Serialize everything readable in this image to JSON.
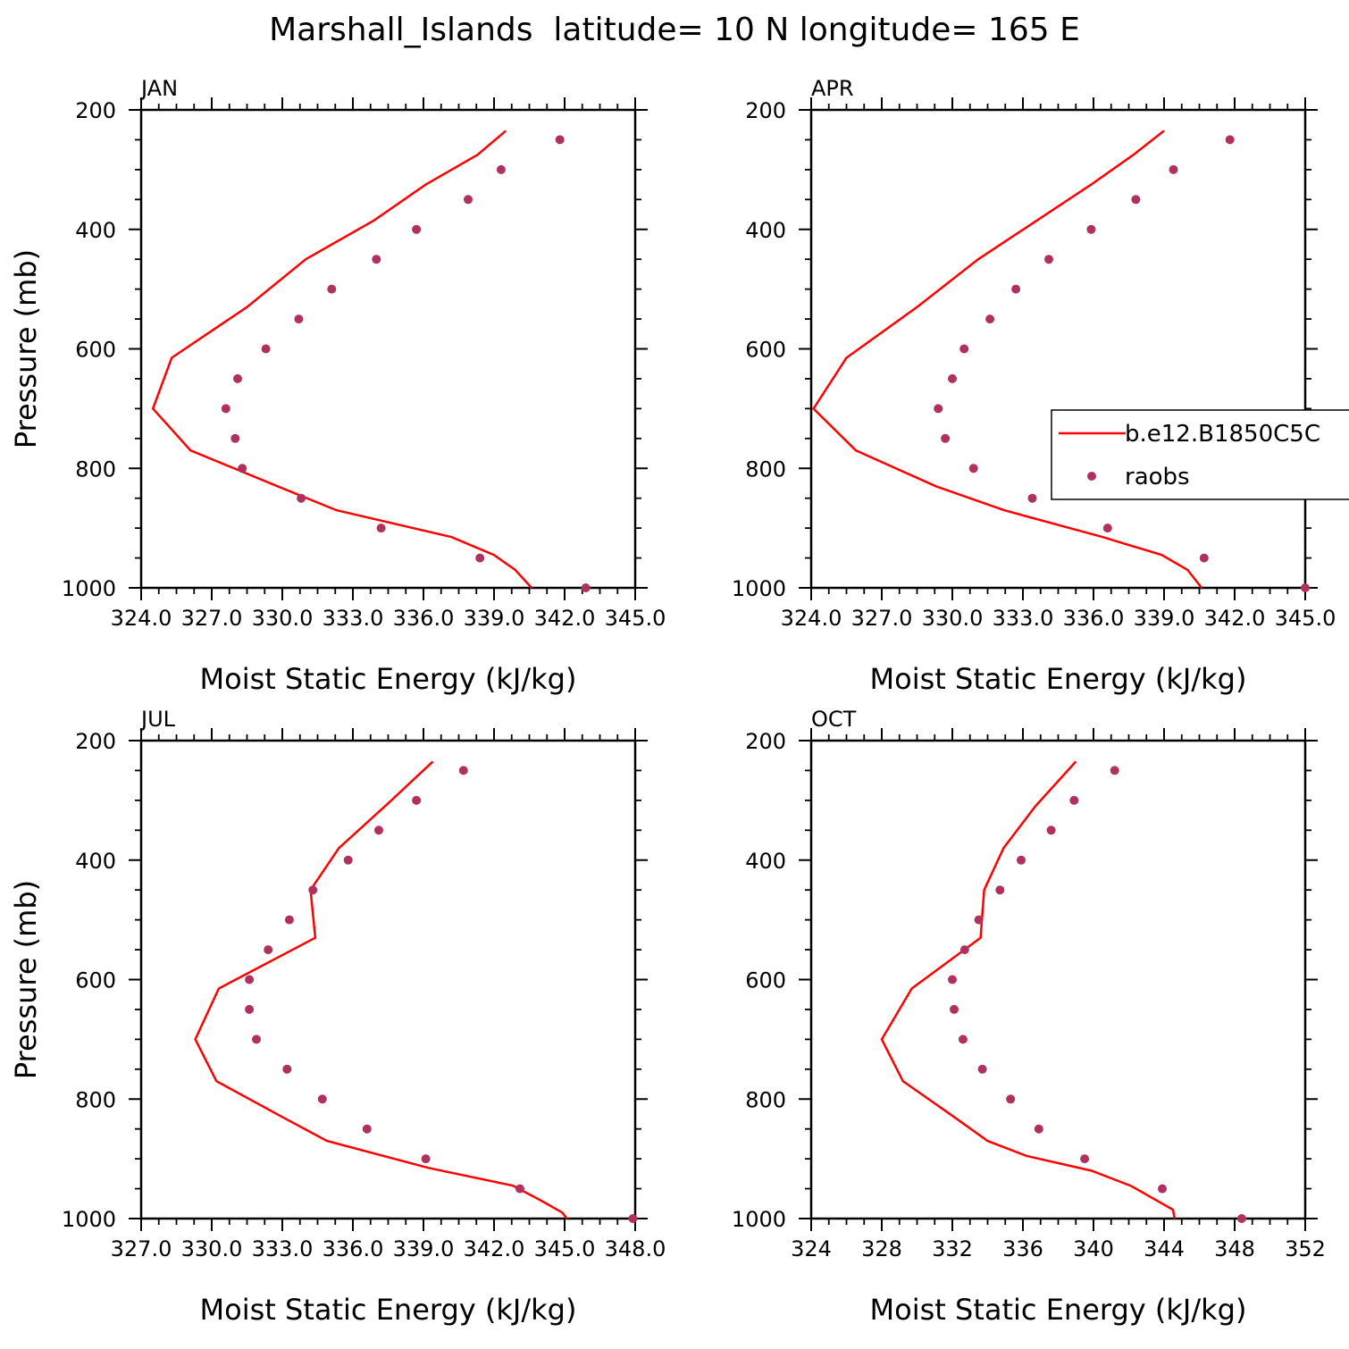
{
  "title": "Marshall_Islands  latitude= 10 N longitude= 165 E",
  "legend": {
    "model_label": "b.e12.B1850C5C",
    "obs_label": "raobs"
  },
  "colors": {
    "model": "#ff0000",
    "obs": "#b03060"
  },
  "chart_data": [
    {
      "type": "line",
      "panel": "JAN",
      "xlabel": "Moist Static Energy (kJ/kg)",
      "ylabel": "Pressure (mb)",
      "xlim": [
        324,
        345
      ],
      "ylim": [
        1000,
        200
      ],
      "grid": false,
      "x_tick_labels": [
        "324.0",
        "327.0",
        "330.0",
        "333.0",
        "336.0",
        "339.0",
        "342.0",
        "345.0"
      ],
      "y_tick_labels": [
        "200",
        "400",
        "600",
        "800",
        "1000"
      ],
      "series": [
        {
          "name": "b.e12.B1850C5C",
          "kind": "line",
          "p": [
            235,
            275,
            325,
            385,
            450,
            530,
            615,
            700,
            770,
            830,
            870,
            915,
            945,
            970,
            1000
          ],
          "x": [
            339.5,
            338.3,
            336.1,
            333.9,
            331.0,
            328.5,
            325.3,
            324.5,
            326.1,
            329.8,
            332.3,
            337.2,
            339.0,
            339.9,
            340.6
          ]
        },
        {
          "name": "raobs",
          "kind": "scatter",
          "p": [
            250,
            300,
            350,
            400,
            450,
            500,
            550,
            600,
            650,
            700,
            750,
            800,
            850,
            900,
            950,
            1000
          ],
          "x": [
            341.8,
            339.3,
            337.9,
            335.7,
            334.0,
            332.1,
            330.7,
            329.3,
            328.1,
            327.6,
            328.0,
            328.3,
            330.8,
            334.2,
            338.4,
            342.9
          ]
        }
      ]
    },
    {
      "type": "line",
      "panel": "APR",
      "xlabel": "Moist Static Energy (kJ/kg)",
      "ylabel": "",
      "xlim": [
        324,
        345
      ],
      "ylim": [
        1000,
        200
      ],
      "grid": false,
      "x_tick_labels": [
        "324.0",
        "327.0",
        "330.0",
        "333.0",
        "336.0",
        "339.0",
        "342.0",
        "345.0"
      ],
      "y_tick_labels": [
        "200",
        "400",
        "600",
        "800",
        "1000"
      ],
      "legend_position": "right",
      "series": [
        {
          "name": "b.e12.B1850C5C",
          "kind": "line",
          "p": [
            235,
            275,
            325,
            385,
            450,
            530,
            615,
            700,
            770,
            830,
            870,
            915,
            945,
            970,
            1000
          ],
          "x": [
            339.0,
            337.7,
            335.9,
            333.6,
            331.1,
            328.5,
            325.5,
            324.1,
            325.9,
            329.3,
            332.2,
            336.4,
            338.9,
            340.0,
            340.6
          ]
        },
        {
          "name": "raobs",
          "kind": "scatter",
          "p": [
            250,
            300,
            350,
            400,
            450,
            500,
            550,
            600,
            650,
            700,
            750,
            800,
            850,
            900,
            950,
            1000
          ],
          "x": [
            341.8,
            339.4,
            337.8,
            335.9,
            334.1,
            332.7,
            331.6,
            330.5,
            330.0,
            329.4,
            329.7,
            330.9,
            333.4,
            336.6,
            340.7,
            345.0
          ]
        }
      ]
    },
    {
      "type": "line",
      "panel": "JUL",
      "xlabel": "Moist Static Energy (kJ/kg)",
      "ylabel": "Pressure (mb)",
      "xlim": [
        327,
        348
      ],
      "ylim": [
        1000,
        200
      ],
      "grid": false,
      "x_tick_labels": [
        "327.0",
        "330.0",
        "333.0",
        "336.0",
        "339.0",
        "342.0",
        "345.0",
        "348.0"
      ],
      "y_tick_labels": [
        "200",
        "400",
        "600",
        "800",
        "1000"
      ],
      "series": [
        {
          "name": "b.e12.B1850C5C",
          "kind": "line",
          "p": [
            235,
            305,
            380,
            450,
            530,
            615,
            700,
            770,
            830,
            870,
            915,
            945,
            970,
            990,
            1000
          ],
          "x": [
            339.4,
            337.5,
            335.4,
            334.2,
            334.4,
            330.3,
            329.3,
            330.2,
            333.0,
            334.9,
            339.2,
            342.8,
            344.0,
            344.9,
            345.1
          ]
        },
        {
          "name": "raobs",
          "kind": "scatter",
          "p": [
            250,
            300,
            350,
            400,
            450,
            500,
            550,
            600,
            650,
            700,
            750,
            800,
            850,
            900,
            950,
            1000
          ],
          "x": [
            340.7,
            338.7,
            337.1,
            335.8,
            334.3,
            333.3,
            332.4,
            331.6,
            331.6,
            331.9,
            333.2,
            334.7,
            336.6,
            339.1,
            343.1,
            347.9
          ]
        }
      ]
    },
    {
      "type": "line",
      "panel": "OCT",
      "xlabel": "Moist Static Energy (kJ/kg)",
      "ylabel": "",
      "xlim": [
        324,
        352
      ],
      "ylim": [
        1000,
        200
      ],
      "grid": false,
      "x_tick_labels": [
        "324",
        "328",
        "332",
        "336",
        "340",
        "344",
        "348",
        "352"
      ],
      "y_tick_labels": [
        "200",
        "400",
        "600",
        "800",
        "1000"
      ],
      "series": [
        {
          "name": "b.e12.B1850C5C",
          "kind": "line",
          "p": [
            235,
            310,
            380,
            450,
            530,
            615,
            700,
            770,
            830,
            870,
            895,
            920,
            945,
            985,
            1000
          ],
          "x": [
            339.0,
            336.7,
            334.9,
            333.8,
            333.6,
            329.7,
            328.0,
            329.2,
            332.1,
            334.0,
            336.2,
            339.9,
            342.1,
            344.5,
            344.6
          ]
        },
        {
          "name": "raobs",
          "kind": "scatter",
          "p": [
            250,
            300,
            350,
            400,
            450,
            500,
            550,
            600,
            650,
            700,
            750,
            800,
            850,
            900,
            950,
            1000
          ],
          "x": [
            341.2,
            338.9,
            337.6,
            335.9,
            334.7,
            333.5,
            332.7,
            332.0,
            332.1,
            332.6,
            333.7,
            335.3,
            336.9,
            339.5,
            343.9,
            348.4
          ]
        }
      ]
    }
  ]
}
